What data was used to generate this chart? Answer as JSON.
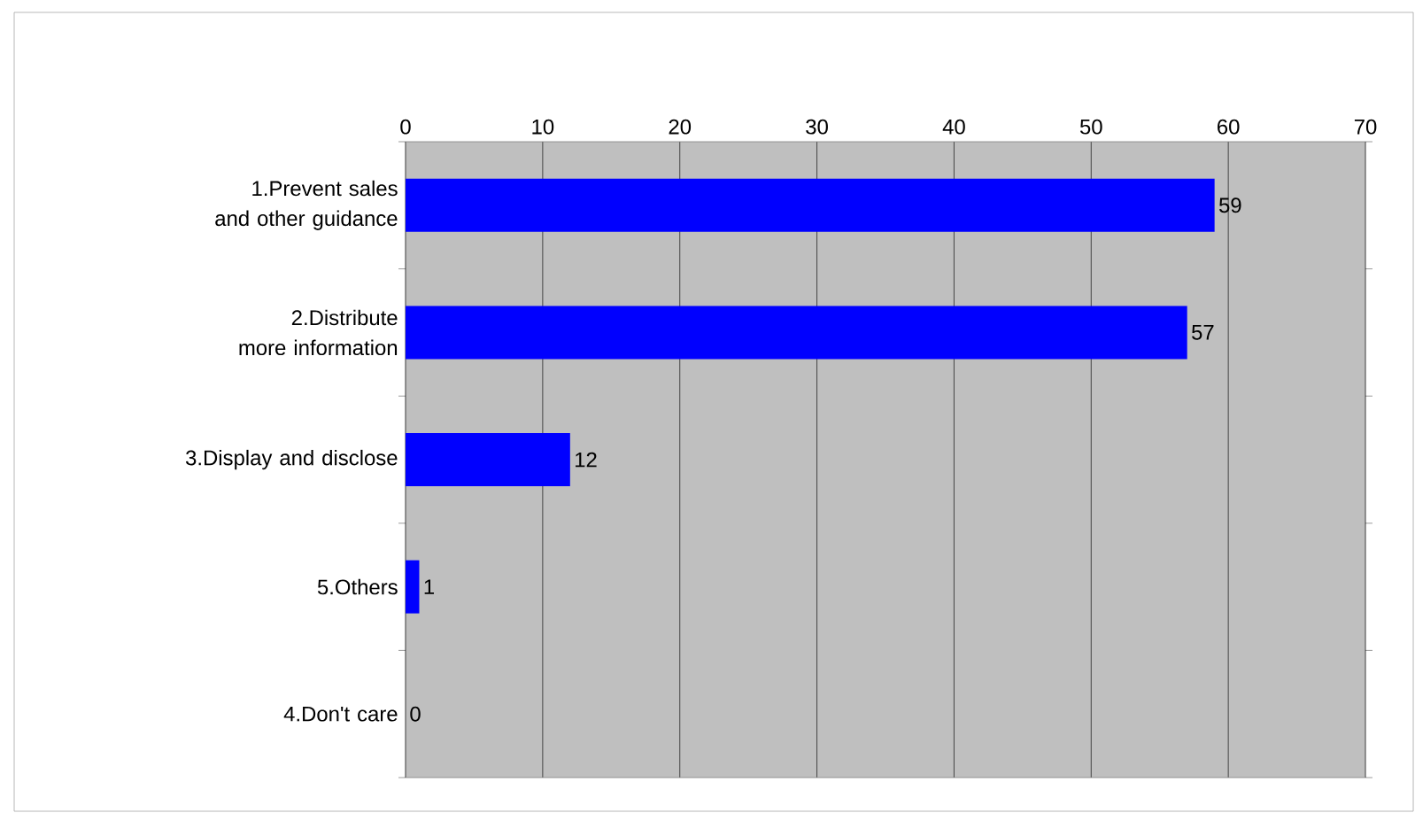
{
  "chart_data": {
    "type": "bar",
    "orientation": "horizontal",
    "categories": [
      "1.Prevent sales and other guidance",
      "2.Distribute more information",
      "3.Display and disclose",
      "5.Others",
      "4.Don't care"
    ],
    "values": [
      59,
      57,
      12,
      1,
      0
    ],
    "color": "#0000ff",
    "xlim": [
      0,
      70
    ],
    "xticks": [
      0,
      10,
      20,
      30,
      40,
      50,
      60,
      70
    ],
    "grid": "x",
    "data_labels": true
  }
}
